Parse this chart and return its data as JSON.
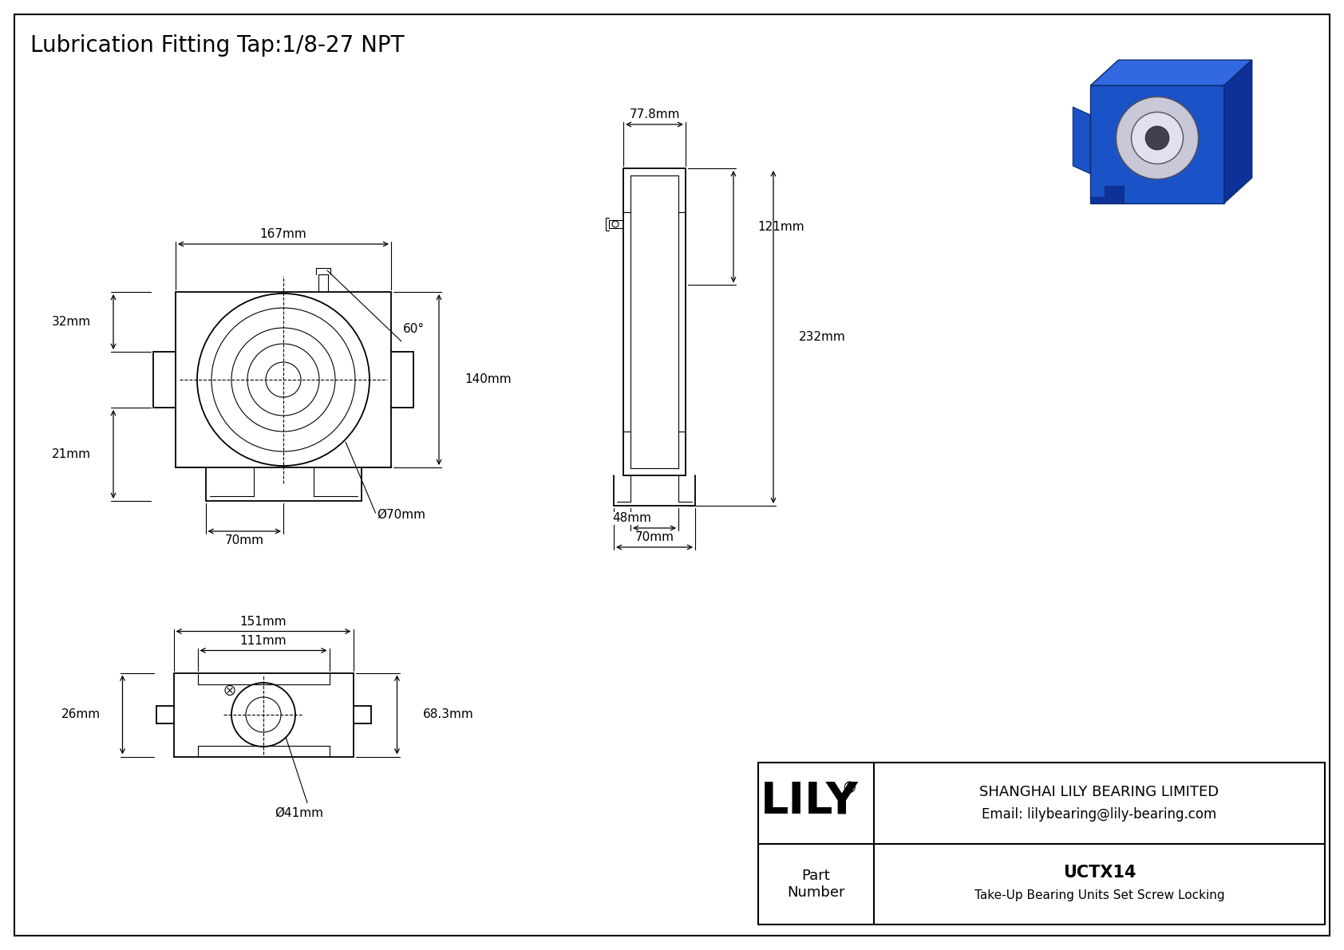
{
  "title": "Lubrication Fitting Tap:1/8-27 NPT",
  "background_color": "#ffffff",
  "line_color": "#000000",
  "dim_color": "#000000",
  "title_fontsize": 20,
  "label_fontsize": 11,
  "company_name": "SHANGHAI LILY BEARING LIMITED",
  "company_email": "Email: lilybearing@lily-bearing.com",
  "part_number_label": "Part\nNumber",
  "part_number": "UCTX14",
  "part_desc": "Take-Up Bearing Units Set Screw Locking",
  "brand": "LILY",
  "dims": {
    "front_width": "167mm",
    "front_right_height": "140mm",
    "front_left_upper": "32mm",
    "front_left_lower": "21mm",
    "front_bottom_left": "70mm",
    "front_bottom_phi": "Ø70mm",
    "front_angle": "60°",
    "side_top_width": "77.8mm",
    "side_upper_height": "121mm",
    "side_total_height": "232mm",
    "side_bottom_inner": "48mm",
    "side_bottom_outer": "70mm",
    "bottom_outer_width": "151mm",
    "bottom_inner_width": "111mm",
    "bottom_right_height": "68.3mm",
    "bottom_left_height": "26mm",
    "bottom_phi": "Ø41mm"
  }
}
